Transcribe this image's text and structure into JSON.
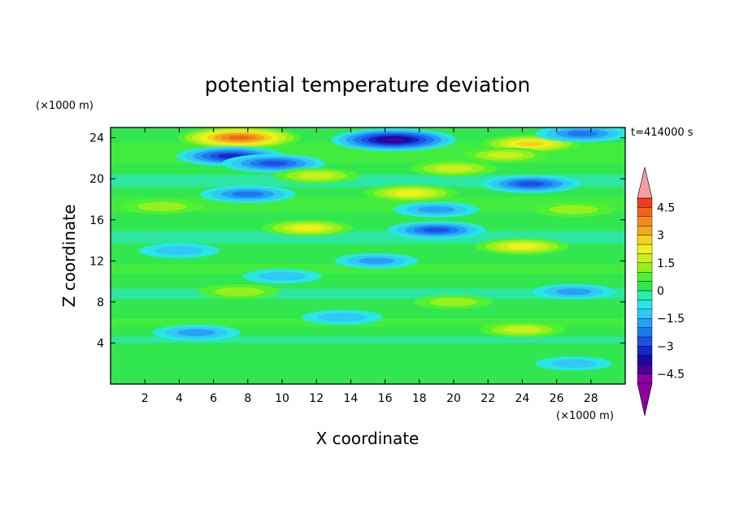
{
  "chart_data": {
    "type": "heatmap",
    "title": "potential temperature deviation",
    "xlabel": "X coordinate",
    "ylabel": "Z coordinate",
    "x_unit": "(×1000 m)",
    "y_unit": "(×1000 m)",
    "time_label": "t=414000 s",
    "xlim": [
      0,
      30
    ],
    "ylim": [
      0,
      25
    ],
    "x_ticks": [
      2,
      4,
      6,
      8,
      10,
      12,
      14,
      16,
      18,
      20,
      22,
      24,
      26,
      28
    ],
    "y_ticks": [
      4,
      8,
      12,
      16,
      20,
      24
    ],
    "colorbar": {
      "levels": [
        -5,
        -4.5,
        -4,
        -3.5,
        -3,
        -2.5,
        -2,
        -1.5,
        -1,
        -0.5,
        0,
        0.5,
        1,
        1.5,
        2,
        2.5,
        3,
        3.5,
        4,
        4.5,
        5
      ],
      "tick_values": [
        4.5,
        3,
        1.5,
        0,
        -1.5,
        -3,
        -4.5
      ],
      "tick_labels": [
        "4.5",
        "3",
        "1.5",
        "0",
        "−1.5",
        "−3",
        "−4.5"
      ],
      "colors": [
        "#8c00a0",
        "#4b0096",
        "#1a0aa0",
        "#1428c8",
        "#1e50e6",
        "#1e78f0",
        "#28a0f5",
        "#32c8f5",
        "#28e6e6",
        "#28f0aa",
        "#32e650",
        "#50f032",
        "#96f01e",
        "#c8f01e",
        "#f0f01e",
        "#f0d21e",
        "#f0aa1e",
        "#f08c1e",
        "#f0641e",
        "#f03c1e",
        "#e6141e"
      ],
      "over_color": "#f0a0a0",
      "under_color": "#8c00a0"
    },
    "features": [
      {
        "x": 7.5,
        "z": 24.0,
        "value": 4.2
      },
      {
        "x": 16.5,
        "z": 23.8,
        "value": -4.3
      },
      {
        "x": 7.0,
        "z": 22.2,
        "value": -3.2
      },
      {
        "x": 9.5,
        "z": 21.5,
        "value": -2.8
      },
      {
        "x": 24.5,
        "z": 23.4,
        "value": 2.6
      },
      {
        "x": 27.5,
        "z": 24.4,
        "value": -2.2
      },
      {
        "x": 12.0,
        "z": 20.3,
        "value": 1.6
      },
      {
        "x": 20.0,
        "z": 21.0,
        "value": 1.8
      },
      {
        "x": 23.0,
        "z": 22.3,
        "value": 1.5
      },
      {
        "x": 24.5,
        "z": 19.5,
        "value": -2.6
      },
      {
        "x": 8.0,
        "z": 18.5,
        "value": -2.3
      },
      {
        "x": 17.5,
        "z": 18.6,
        "value": 2.2
      },
      {
        "x": 3.0,
        "z": 17.3,
        "value": 1.4
      },
      {
        "x": 19.0,
        "z": 17.0,
        "value": -1.6
      },
      {
        "x": 11.5,
        "z": 15.2,
        "value": 2.0
      },
      {
        "x": 19.0,
        "z": 15.0,
        "value": -2.5
      },
      {
        "x": 27.0,
        "z": 17.0,
        "value": 1.3
      },
      {
        "x": 24.0,
        "z": 13.4,
        "value": 2.2
      },
      {
        "x": 15.5,
        "z": 12.0,
        "value": -1.5
      },
      {
        "x": 4.0,
        "z": 13.0,
        "value": -1.3
      },
      {
        "x": 10.0,
        "z": 10.5,
        "value": -1.2
      },
      {
        "x": 7.5,
        "z": 9.0,
        "value": 1.4
      },
      {
        "x": 27.0,
        "z": 9.0,
        "value": -1.5
      },
      {
        "x": 20.0,
        "z": 8.0,
        "value": 1.2
      },
      {
        "x": 13.5,
        "z": 6.5,
        "value": -1.3
      },
      {
        "x": 5.0,
        "z": 5.0,
        "value": -1.8
      },
      {
        "x": 24.0,
        "z": 5.3,
        "value": 1.6
      },
      {
        "x": 27.0,
        "z": 2.0,
        "value": -1.0
      }
    ]
  }
}
